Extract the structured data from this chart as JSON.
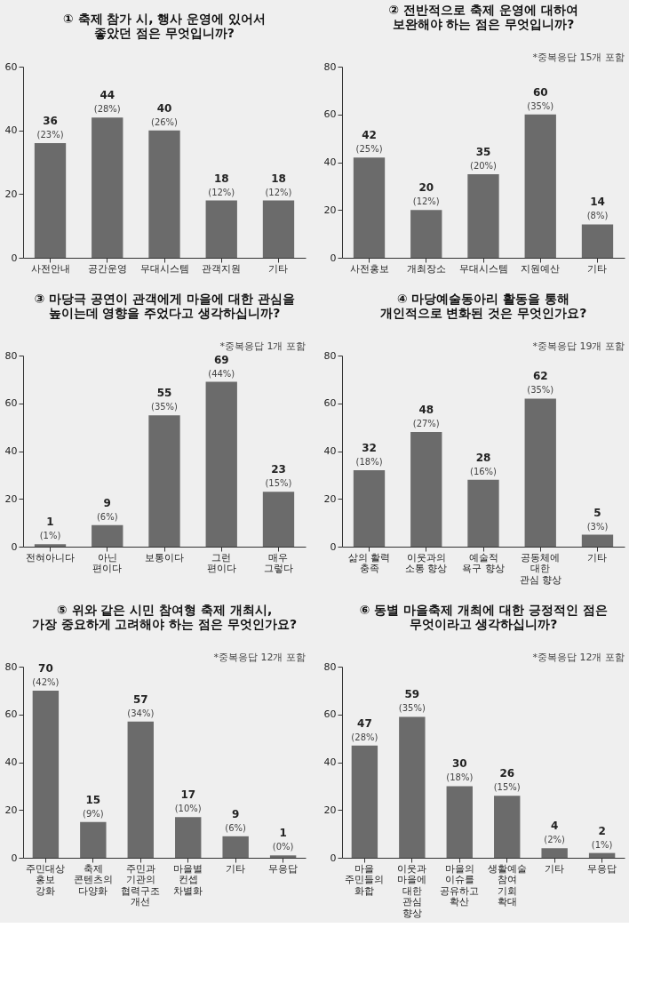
{
  "chart_data": [
    {
      "type": "bar",
      "title": "① 축제 참가 시, 행사 운영에 있어서\n좋았던 점은 무엇입니까?",
      "categories": [
        "사전안내",
        "공간운영",
        "무대시스템",
        "관객지원",
        "기타"
      ],
      "values": [
        36,
        44,
        40,
        18,
        18
      ],
      "value_labels": [
        "36\n(23%)",
        "44\n(28%)",
        "40\n(26%)",
        "18\n(12%)",
        "18\n(12%)"
      ],
      "color": "#6b6b6b",
      "ylim": [
        0,
        60
      ],
      "yticks": [
        0,
        20,
        40,
        60
      ]
    },
    {
      "type": "bar",
      "title": "② 전반적으로 축제 운영에 대하여\n보완해야 하는 점은 무엇입니까?",
      "categories": [
        "사전홍보",
        "개최장소",
        "무대시스템",
        "지원예산",
        "기타"
      ],
      "values": [
        42,
        20,
        35,
        60,
        14
      ],
      "value_labels": [
        "42\n(25%)",
        "20\n(12%)",
        "35\n(20%)",
        "60\n(35%)",
        "14\n(8%)"
      ],
      "color": "#6b6b6b",
      "ylim": [
        0,
        80
      ],
      "yticks": [
        0,
        20,
        40,
        60,
        80
      ],
      "annotations": [
        "*중복응답  15개 포함"
      ]
    },
    {
      "type": "bar",
      "title": "③ 마당극 공연이 관객에게 마을에 대한 관심을\n높이는데 영향을 주었다고 생각하십니까?",
      "categories": [
        "전혀아니다",
        "아닌 편이다",
        "보통이다",
        "그런 편이다",
        "매우 그렇다"
      ],
      "values": [
        1,
        9,
        55,
        69,
        23
      ],
      "value_labels": [
        "1\n(1%)",
        "9\n(6%)",
        "55\n(35%)",
        "69\n(44%)",
        "23\n(15%)"
      ],
      "color": "#6b6b6b",
      "ylim": [
        0,
        80
      ],
      "yticks": [
        0,
        20,
        40,
        60,
        80
      ],
      "annotations": [
        "*중복응답  1개 포함"
      ]
    },
    {
      "type": "bar",
      "title": "④ 마당예술동아리 활동을 통해\n개인적으로 변화된 것은 무엇인가요?",
      "categories": [
        "삶의 활력 충족",
        "이웃과의\n소통 향상",
        "예술적\n욕구 향상",
        "공동체에  대한\n관심 향상",
        "기타"
      ],
      "values": [
        32,
        48,
        28,
        62,
        5
      ],
      "value_labels": [
        "32\n(18%)",
        "48\n(27%)",
        "28\n(16%)",
        "62\n(35%)",
        "5\n(3%)"
      ],
      "color": "#6b6b6b",
      "ylim": [
        0,
        80
      ],
      "yticks": [
        0,
        20,
        40,
        60,
        80
      ],
      "annotations": [
        "*중복응답  19개 포함"
      ]
    },
    {
      "type": "bar",
      "title": "⑤ 위와 같은 시민 참여형 축제 개최시,\n가장 중요하게 고려해야 하는 점은 무엇인가요?",
      "categories": [
        "주민대상\n홍보 강화",
        "축제 콘텐츠의\n다양화",
        "주민과 기관의\n협력구조 개선",
        "마을별\n컨셉 차별화",
        "기타",
        "무응답"
      ],
      "values": [
        70,
        15,
        57,
        17,
        9,
        1
      ],
      "value_labels": [
        "70\n(42%)",
        "15\n(9%)",
        "57\n(34%)",
        "17\n(10%)",
        "9\n(6%)",
        "1\n(0%)"
      ],
      "color": "#6b6b6b",
      "ylim": [
        0,
        80
      ],
      "yticks": [
        0,
        20,
        40,
        60,
        80
      ],
      "annotations": [
        "*중복응답  12개 포함"
      ]
    },
    {
      "type": "bar",
      "title": "⑥ 동별 마을축제 개최에 대한 긍정적인 점은\n무엇이라고 생각하십니까?",
      "categories": [
        "마을 주민들의\n화합",
        "이웃과 마을에 대한\n관심 향상",
        "마을의 이슈를\n공유하고 확산",
        "생활예술\n참여 기회 확대",
        "기타",
        "무응답"
      ],
      "values": [
        47,
        59,
        30,
        26,
        4,
        2
      ],
      "value_labels": [
        "47\n(28%)",
        "59\n(35%)",
        "30\n(18%)",
        "26\n(15%)",
        "4\n(2%)",
        "2\n(1%)"
      ],
      "color": "#6b6b6b",
      "ylim": [
        0,
        80
      ],
      "yticks": [
        0,
        20,
        40,
        60,
        80
      ],
      "annotations": [
        "*중복응답  12개 포함"
      ]
    }
  ]
}
